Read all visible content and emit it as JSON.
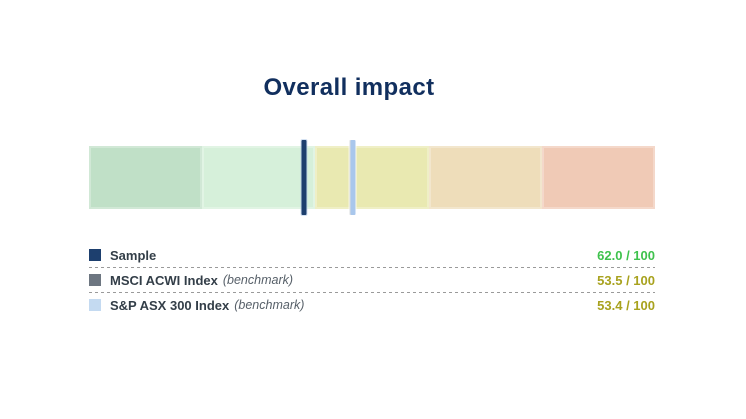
{
  "title": "Overall impact",
  "colors": {
    "title": "#112f5e",
    "label": "#333e48",
    "benchmark_note": "#565f68",
    "separator": "#9a9a9a",
    "good_value": "#3fc24d",
    "mid_value": "#a8a21e"
  },
  "chart_data": {
    "type": "bullet",
    "title": "Overall impact",
    "scale": {
      "min": 0,
      "max": 100,
      "left_edge_value": 100,
      "right_edge_value": 0,
      "direction": "high-to-low-left-to-right"
    },
    "bands": [
      {
        "range": [
          100,
          80
        ],
        "color": "#c0e0c7"
      },
      {
        "range": [
          80,
          60
        ],
        "color": "#d6f0da"
      },
      {
        "range": [
          60,
          40
        ],
        "color": "#e9e9b1"
      },
      {
        "range": [
          40,
          20
        ],
        "color": "#eeddba"
      },
      {
        "range": [
          20,
          0
        ],
        "color": "#f0cab6"
      }
    ],
    "markers": [
      {
        "name": "MSCI ACWI Index",
        "value": 53.5,
        "color": "#6d7681",
        "outline": "rgba(255,255,255,0.6)"
      },
      {
        "name": "S&P ASX 300 Index",
        "value": 53.4,
        "color": "#a9c7ec",
        "outline": "rgba(255,255,255,0.75)"
      },
      {
        "name": "Sample",
        "value": 62.0,
        "color": "#1d3f6e",
        "outline": "rgba(176,200,232,0.55)"
      }
    ]
  },
  "legend": {
    "rows": [
      {
        "label": "Sample",
        "benchmark_note": "",
        "value": "62.0 / 100",
        "value_color": "#3fc24d",
        "swatch_color": "#1d3f6e"
      },
      {
        "label": "MSCI ACWI Index",
        "benchmark_note": "(benchmark)",
        "value": "53.5 / 100",
        "value_color": "#a8a21e",
        "swatch_color": "#6d7681"
      },
      {
        "label": "S&P ASX 300 Index",
        "benchmark_note": "(benchmark)",
        "value": "53.4 / 100",
        "value_color": "#a8a21e",
        "swatch_color": "#c4daf1"
      }
    ]
  }
}
